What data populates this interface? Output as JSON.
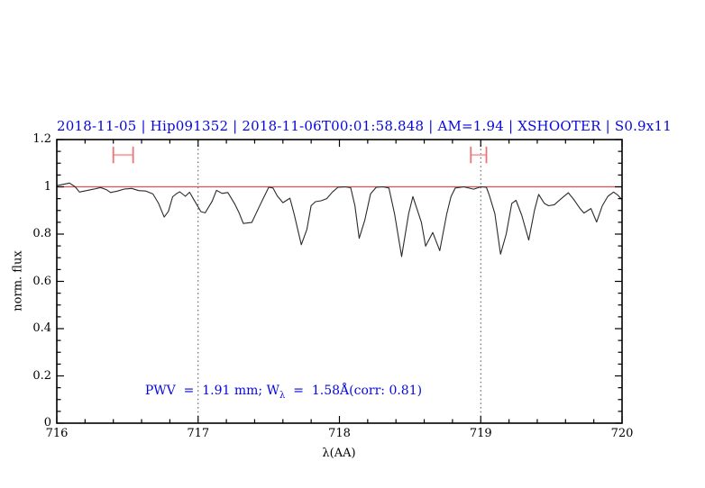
{
  "title": {
    "text": "2018-11-05 | Hip091352 | 2018-11-06T00:01:58.848 | AM=1.94 | XSHOOTER | S0.9x11",
    "color": "#0707df"
  },
  "annotation": {
    "prefix": "PWV  =  1.91 mm; W",
    "sub": "λ",
    "suffix": "  =  1.58Å(corr: 0.81)",
    "color": "#0707df"
  },
  "chart_data": {
    "type": "line",
    "title": "2018-11-05 | Hip091352 | 2018-11-06T00:01:58.848 | AM=1.94 | XSHOOTER | S0.9x11",
    "xlabel": "λ(AA)",
    "ylabel": "norm. flux",
    "xlim": [
      716,
      720
    ],
    "ylim": [
      0,
      1.2
    ],
    "x_ticks": [
      716,
      717,
      718,
      719,
      720
    ],
    "x_tick_labels": [
      "716",
      "717",
      "718",
      "719",
      "720"
    ],
    "y_ticks": [
      0,
      0.2,
      0.4,
      0.6,
      0.8,
      1,
      1.2
    ],
    "y_tick_labels": [
      "0",
      "0.2",
      "0.4",
      "0.6",
      "0.8",
      "1",
      "1.2"
    ],
    "x_minor_step": 0.2,
    "y_minor_step": 0.05,
    "grid": false,
    "legend": null,
    "dotted_vlines": [
      717,
      719
    ],
    "vline_color": "#4a4a4a",
    "continuum": {
      "y": 1.0,
      "color": "#e05050"
    },
    "range_markers": [
      {
        "x_from": 716.4,
        "x_to": 716.54,
        "y": 1.135,
        "cap_half": 0.035
      },
      {
        "x_from": 718.93,
        "x_to": 719.04,
        "y": 1.135,
        "cap_half": 0.035
      }
    ],
    "marker_bar_color": "#f7a8a8",
    "marker_cap_color": "#ee7474",
    "series": [
      {
        "name": "telluric-spectrum",
        "color": "#2b2b2b",
        "points": [
          [
            716.0,
            1.005
          ],
          [
            716.04,
            1.01
          ],
          [
            716.09,
            1.016
          ],
          [
            716.13,
            1.0
          ],
          [
            716.16,
            0.978
          ],
          [
            716.21,
            0.984
          ],
          [
            716.26,
            0.99
          ],
          [
            716.31,
            0.997
          ],
          [
            716.35,
            0.988
          ],
          [
            716.38,
            0.976
          ],
          [
            716.43,
            0.982
          ],
          [
            716.48,
            0.991
          ],
          [
            716.53,
            0.993
          ],
          [
            716.58,
            0.984
          ],
          [
            716.63,
            0.982
          ],
          [
            716.68,
            0.97
          ],
          [
            716.72,
            0.93
          ],
          [
            716.76,
            0.872
          ],
          [
            716.79,
            0.896
          ],
          [
            716.82,
            0.958
          ],
          [
            716.85,
            0.972
          ],
          [
            716.87,
            0.979
          ],
          [
            716.91,
            0.96
          ],
          [
            716.94,
            0.977
          ],
          [
            716.97,
            0.946
          ],
          [
            717.02,
            0.895
          ],
          [
            717.05,
            0.89
          ],
          [
            717.1,
            0.94
          ],
          [
            717.13,
            0.985
          ],
          [
            717.17,
            0.972
          ],
          [
            717.21,
            0.976
          ],
          [
            717.26,
            0.927
          ],
          [
            717.29,
            0.89
          ],
          [
            717.32,
            0.845
          ],
          [
            717.38,
            0.849
          ],
          [
            717.43,
            0.913
          ],
          [
            717.47,
            0.962
          ],
          [
            717.5,
            0.998
          ],
          [
            717.53,
            0.995
          ],
          [
            717.56,
            0.962
          ],
          [
            717.6,
            0.933
          ],
          [
            717.65,
            0.952
          ],
          [
            717.68,
            0.884
          ],
          [
            717.73,
            0.755
          ],
          [
            717.77,
            0.82
          ],
          [
            717.8,
            0.92
          ],
          [
            717.83,
            0.937
          ],
          [
            717.87,
            0.941
          ],
          [
            717.91,
            0.95
          ],
          [
            717.95,
            0.978
          ],
          [
            717.99,
            0.998
          ],
          [
            718.04,
            1.0
          ],
          [
            718.08,
            0.996
          ],
          [
            718.11,
            0.92
          ],
          [
            718.14,
            0.782
          ],
          [
            718.18,
            0.86
          ],
          [
            718.22,
            0.97
          ],
          [
            718.26,
            0.998
          ],
          [
            718.31,
            1.0
          ],
          [
            718.35,
            0.995
          ],
          [
            718.39,
            0.887
          ],
          [
            718.44,
            0.705
          ],
          [
            718.49,
            0.887
          ],
          [
            718.52,
            0.959
          ],
          [
            718.58,
            0.85
          ],
          [
            718.61,
            0.749
          ],
          [
            718.66,
            0.807
          ],
          [
            718.71,
            0.73
          ],
          [
            718.76,
            0.887
          ],
          [
            718.79,
            0.959
          ],
          [
            718.82,
            0.995
          ],
          [
            718.88,
            1.0
          ],
          [
            718.95,
            0.99
          ],
          [
            719.0,
            1.0
          ],
          [
            719.04,
            0.998
          ],
          [
            719.06,
            0.965
          ],
          [
            719.1,
            0.887
          ],
          [
            719.14,
            0.715
          ],
          [
            719.18,
            0.8
          ],
          [
            719.22,
            0.93
          ],
          [
            719.25,
            0.943
          ],
          [
            719.29,
            0.88
          ],
          [
            719.34,
            0.775
          ],
          [
            719.38,
            0.9
          ],
          [
            719.41,
            0.968
          ],
          [
            719.45,
            0.93
          ],
          [
            719.48,
            0.92
          ],
          [
            719.52,
            0.924
          ],
          [
            719.57,
            0.95
          ],
          [
            719.62,
            0.975
          ],
          [
            719.66,
            0.945
          ],
          [
            719.7,
            0.91
          ],
          [
            719.73,
            0.889
          ],
          [
            719.78,
            0.908
          ],
          [
            719.82,
            0.851
          ],
          [
            719.86,
            0.92
          ],
          [
            719.9,
            0.96
          ],
          [
            719.94,
            0.978
          ],
          [
            719.97,
            0.965
          ],
          [
            720.0,
            0.945
          ]
        ]
      }
    ]
  }
}
